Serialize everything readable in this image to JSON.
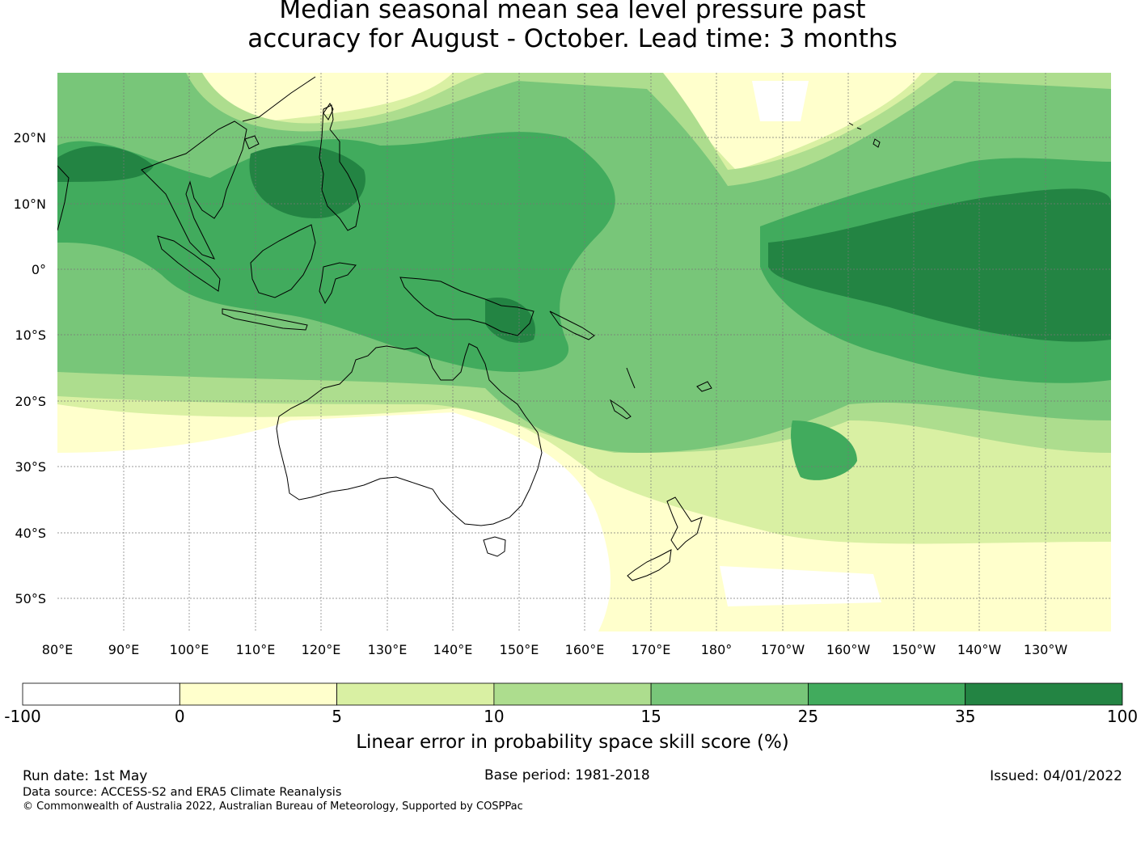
{
  "title": {
    "line1": "Median seasonal mean sea level pressure past",
    "line2": "accuracy for August - October. Lead time: 3 months"
  },
  "map": {
    "lat_labels": [
      "20°N",
      "10°N",
      "0°",
      "10°S",
      "20°S",
      "30°S",
      "40°S",
      "50°S"
    ],
    "lon_labels": [
      "80°E",
      "90°E",
      "100°E",
      "110°E",
      "120°E",
      "130°E",
      "140°E",
      "150°E",
      "160°E",
      "170°E",
      "180°",
      "170°W",
      "160°W",
      "150°W",
      "140°W",
      "130°W"
    ]
  },
  "colorbar": {
    "title": "Linear error in probability space skill score (%)",
    "ticks": [
      "-100",
      "0",
      "5",
      "10",
      "15",
      "25",
      "35",
      "100"
    ],
    "colors": [
      "#ffffff",
      "#ffffcc",
      "#d9f0a3",
      "#addd8e",
      "#78c679",
      "#41ab5d",
      "#238443"
    ]
  },
  "footer": {
    "run_date": "Run date: 1st May",
    "base_period": "Base period: 1981-2018",
    "issued": "Issued: 04/01/2022",
    "data_source": "Data source: ACCESS-S2 and ERA5 Climate Reanalysis",
    "copyright": "© Commonwealth of Australia 2022, Australian Bureau of Meteorology, Supported by COSPPac"
  }
}
